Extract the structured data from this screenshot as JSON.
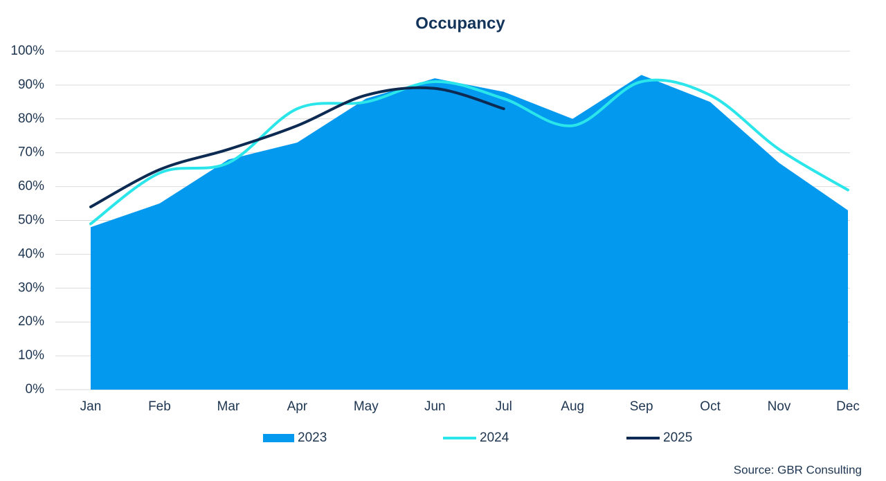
{
  "chart_data": {
    "type": "line",
    "title": "Occupancy",
    "categories": [
      "Jan",
      "Feb",
      "Mar",
      "Apr",
      "May",
      "Jun",
      "Jul",
      "Aug",
      "Sep",
      "Oct",
      "Nov",
      "Dec"
    ],
    "series": [
      {
        "name": "2023",
        "type": "area",
        "color": "#0399ef",
        "values": [
          48,
          55,
          68,
          73,
          86,
          92,
          88,
          80,
          93,
          85,
          67,
          53
        ]
      },
      {
        "name": "2024",
        "type": "line",
        "color": "#2ae6ea",
        "values": [
          49,
          64,
          67,
          83,
          85,
          91,
          86,
          78,
          91,
          87,
          71,
          59
        ]
      },
      {
        "name": "2025",
        "type": "line",
        "color": "#0d2b52",
        "values": [
          54,
          65,
          71,
          78,
          87,
          89,
          83,
          null,
          null,
          null,
          null,
          null
        ]
      }
    ],
    "ylim": [
      0,
      100
    ],
    "yticks": [
      {
        "value": 0,
        "label": "0%"
      },
      {
        "value": 10,
        "label": "10%"
      },
      {
        "value": 20,
        "label": "20%"
      },
      {
        "value": 30,
        "label": "30%"
      },
      {
        "value": 40,
        "label": "40%"
      },
      {
        "value": 50,
        "label": "50%"
      },
      {
        "value": 60,
        "label": "60%"
      },
      {
        "value": 70,
        "label": "70%"
      },
      {
        "value": 80,
        "label": "80%"
      },
      {
        "value": 90,
        "label": "90%"
      },
      {
        "value": 100,
        "label": "100%"
      }
    ],
    "grid": true,
    "smooth": true,
    "legend": "bottom",
    "source": "Source: GBR Consulting"
  }
}
